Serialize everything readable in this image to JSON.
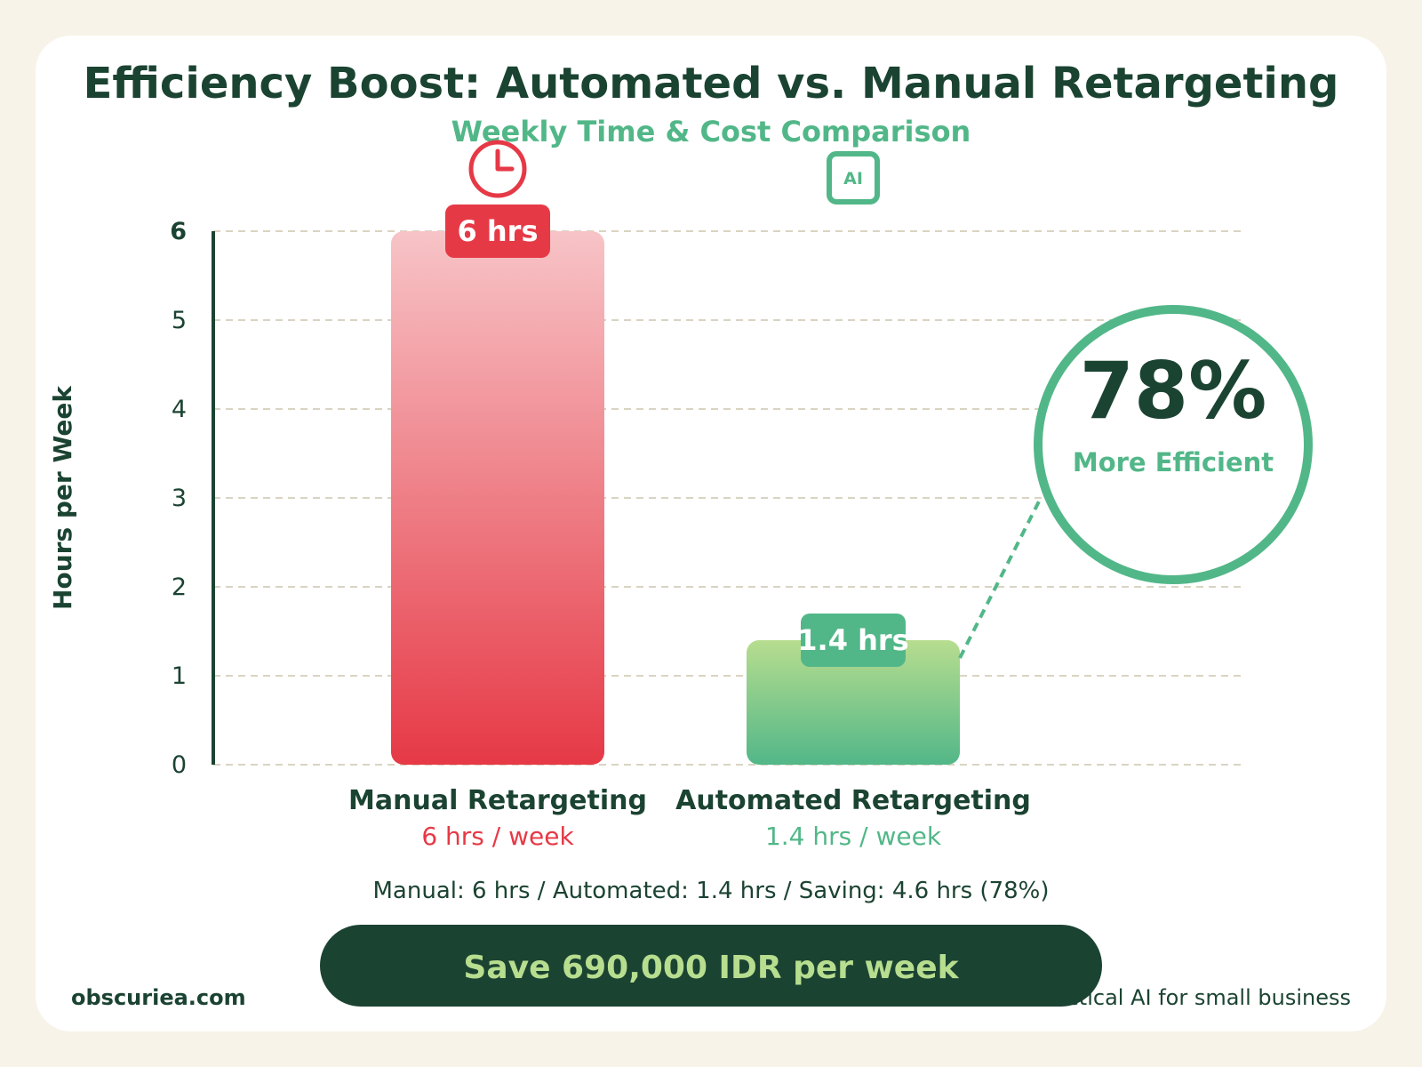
{
  "title": "Efficiency Boost: Automated vs. Manual Retargeting",
  "subtitle": "Weekly Time & Cost Comparison",
  "colors": {
    "dark": "#1b4332",
    "green": "#52b788",
    "light_green": "#b7dd8f",
    "red": "#e63946",
    "light_red": "#f7c4c7",
    "grid": "#d9d4c2",
    "background": "#f7f3e8"
  },
  "chart_data": {
    "type": "bar",
    "ylabel": "Hours per Week",
    "ylim": [
      0,
      6
    ],
    "yticks": [
      "0",
      "1",
      "2",
      "3",
      "4",
      "5",
      "6"
    ],
    "grid": true,
    "categories": [
      "Manual Retargeting",
      "Automated Retargeting"
    ],
    "values": [
      6,
      1.4
    ],
    "value_labels": [
      "6 hrs",
      "1.4 hrs"
    ],
    "sublabels": [
      "6 hrs / week",
      "1.4 hrs / week"
    ],
    "icons": [
      "clock-icon",
      "ai-chip-icon"
    ],
    "ai_icon_text": "AI"
  },
  "callout": {
    "percent": "78%",
    "text": "More Efficient"
  },
  "summary": "Manual: 6 hrs / Automated: 1.4 hrs / Saving: 4.6 hrs (78%)",
  "savings_banner": "Save 690,000 IDR per week",
  "footer": {
    "site": "obscuriea.com",
    "tagline": "Practical AI for small business"
  }
}
